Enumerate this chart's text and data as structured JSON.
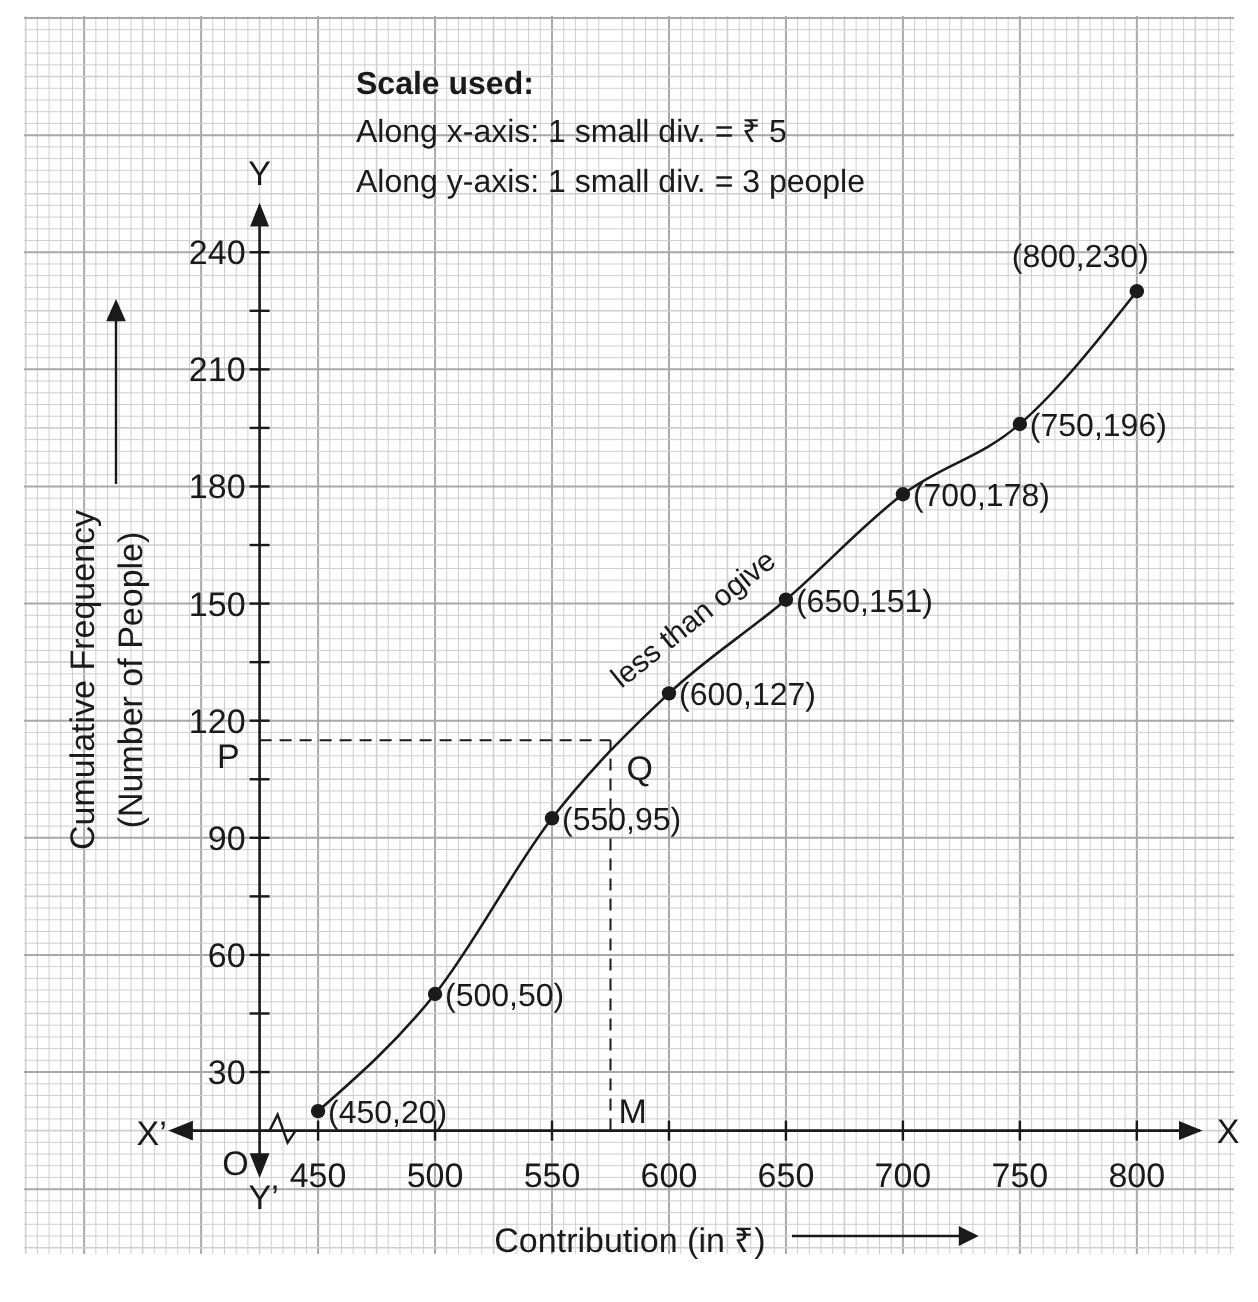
{
  "chart_data": {
    "type": "line",
    "title": "Scale used:",
    "annotations": [
      "Along x-axis: 1  small div. = ₹ 5",
      "Along y-axis: 1  small div. = 3 people",
      "O",
      "X",
      "X’",
      "Y",
      "Y’",
      {
        "text": "Q",
        "x": 575,
        "y": 115
      },
      {
        "text": "(450,20)",
        "x": 450,
        "y": 20
      },
      {
        "text": "(500,50)",
        "x": 500,
        "y": 50
      },
      {
        "text": "(550,95)",
        "x": 550,
        "y": 95
      },
      {
        "text": "(600,127)",
        "x": 600,
        "y": 127
      },
      {
        "text": "(650,151)",
        "x": 650,
        "y": 151
      },
      {
        "text": "(700,178)",
        "x": 700,
        "y": 178
      },
      {
        "text": "(750,196)",
        "x": 750,
        "y": 196
      },
      {
        "text": "(800,230)",
        "x": 800,
        "y": 230
      }
    ],
    "xlabel": "Contribution (in ₹)",
    "ylabel": "Cumulative Frequency\n(Number of People)",
    "x": [
      450,
      500,
      550,
      600,
      650,
      700,
      750,
      800
    ],
    "series": [
      {
        "name": "less than ogive",
        "color": "#1a1a1a",
        "values": [
          20,
          50,
          95,
          127,
          151,
          178,
          196,
          230
        ]
      }
    ],
    "xlim": [
      425,
      827
    ],
    "ylim": [
      15,
      252
    ],
    "xticks": [
      450,
      500,
      550,
      600,
      650,
      700,
      750,
      800
    ],
    "yticks": [
      30,
      {
        "value": 45,
        "label": null
      },
      60,
      {
        "value": 75,
        "label": null
      },
      90,
      {
        "value": 105,
        "label": null
      },
      120,
      {
        "value": 135,
        "label": null
      },
      150,
      {
        "value": 165,
        "label": null
      },
      180,
      {
        "value": 195,
        "label": null
      },
      210,
      {
        "value": 225,
        "label": null
      },
      240
    ],
    "ref_lines": [
      {
        "axis": "y",
        "value": 115,
        "label": "P",
        "line_style": "dashed"
      },
      {
        "axis": "x",
        "value": 575,
        "label": "M",
        "line_style": "dashed"
      }
    ],
    "grid": true,
    "marker": "circle",
    "line_style": "solid"
  }
}
